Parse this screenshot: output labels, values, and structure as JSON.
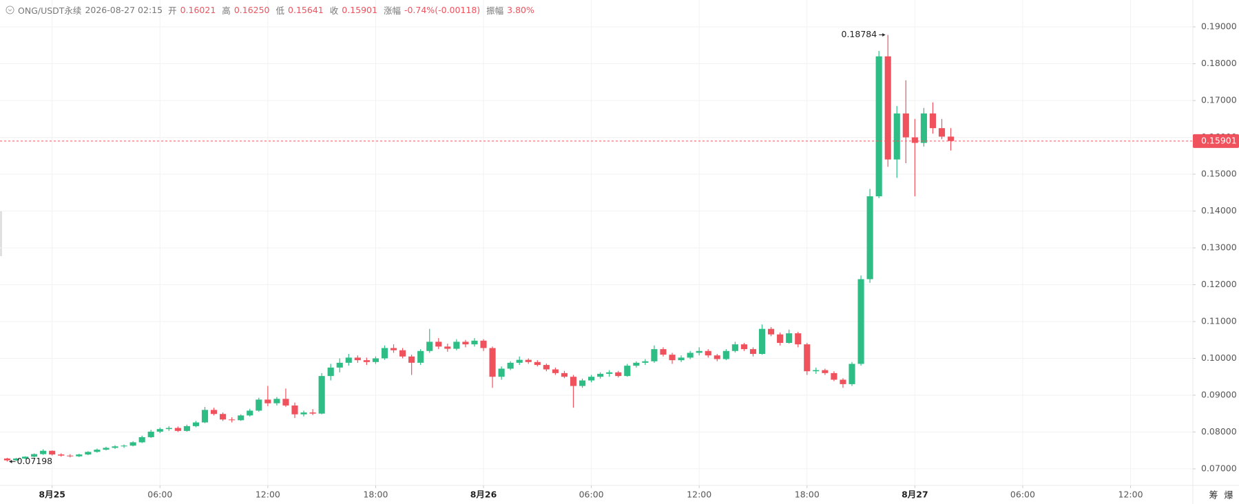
{
  "header": {
    "symbol": "ONG/USDT永续",
    "time": "2026-08-27 02:15",
    "fields": [
      {
        "label": "开",
        "value": "0.16021"
      },
      {
        "label": "高",
        "value": "0.16250"
      },
      {
        "label": "低",
        "value": "0.15641"
      },
      {
        "label": "收",
        "value": "0.15901"
      },
      {
        "label": "涨幅",
        "value": "-0.74%(-0.00118)"
      },
      {
        "label": "振幅",
        "value": "3.80%"
      }
    ]
  },
  "corner_labels": [
    "筹",
    "爆"
  ],
  "chart_data": {
    "type": "candlestick",
    "up_color": "#2ebd85",
    "down_color": "#f0525d",
    "grid": true,
    "xlim": [
      "2026-08-24 21:06",
      "2026-08-27 15:28"
    ],
    "ylim": [
      0.0655,
      0.1973
    ],
    "yticks": [
      {
        "value": 0.07,
        "label": "0.07000"
      },
      {
        "value": 0.08,
        "label": "0.08000"
      },
      {
        "value": 0.09,
        "label": "0.09000"
      },
      {
        "value": 0.1,
        "label": "0.10000"
      },
      {
        "value": 0.11,
        "label": "0.11000"
      },
      {
        "value": 0.12,
        "label": "0.12000"
      },
      {
        "value": 0.13,
        "label": "0.13000"
      },
      {
        "value": 0.14,
        "label": "0.14000"
      },
      {
        "value": 0.15,
        "label": "0.15000"
      },
      {
        "value": 0.16,
        "label": "0.16000"
      },
      {
        "value": 0.17,
        "label": "0.17000"
      },
      {
        "value": 0.18,
        "label": "0.18000"
      },
      {
        "value": 0.19,
        "label": "0.19000"
      }
    ],
    "xticks": [
      {
        "value": "2026-08-25 00:00",
        "label": "8月25"
      },
      {
        "value": "2026-08-25 06:00",
        "label": "06:00"
      },
      {
        "value": "2026-08-25 12:00",
        "label": "12:00"
      },
      {
        "value": "2026-08-25 18:00",
        "label": "18:00"
      },
      {
        "value": "2026-08-26 00:00",
        "label": "8月26"
      },
      {
        "value": "2026-08-26 06:00",
        "label": "06:00"
      },
      {
        "value": "2026-08-26 12:00",
        "label": "12:00"
      },
      {
        "value": "2026-08-26 18:00",
        "label": "18:00"
      },
      {
        "value": "2026-08-27 00:00",
        "label": "8月27"
      },
      {
        "value": "2026-08-27 06:00",
        "label": "06:00"
      },
      {
        "value": "2026-08-27 12:00",
        "label": "12:00"
      }
    ],
    "x": [
      "2026-08-24 21:30",
      "2026-08-24 22:00",
      "2026-08-24 22:30",
      "2026-08-24 23:00",
      "2026-08-24 23:30",
      "2026-08-25 00:00",
      "2026-08-25 00:30",
      "2026-08-25 01:00",
      "2026-08-25 01:30",
      "2026-08-25 02:00",
      "2026-08-25 02:30",
      "2026-08-25 03:00",
      "2026-08-25 03:30",
      "2026-08-25 04:00",
      "2026-08-25 04:30",
      "2026-08-25 05:00",
      "2026-08-25 05:30",
      "2026-08-25 06:00",
      "2026-08-25 06:30",
      "2026-08-25 07:00",
      "2026-08-25 07:30",
      "2026-08-25 08:00",
      "2026-08-25 08:30",
      "2026-08-25 09:00",
      "2026-08-25 09:30",
      "2026-08-25 10:00",
      "2026-08-25 10:30",
      "2026-08-25 11:00",
      "2026-08-25 11:30",
      "2026-08-25 12:00",
      "2026-08-25 12:30",
      "2026-08-25 13:00",
      "2026-08-25 13:30",
      "2026-08-25 14:00",
      "2026-08-25 14:30",
      "2026-08-25 15:00",
      "2026-08-25 15:30",
      "2026-08-25 16:00",
      "2026-08-25 16:30",
      "2026-08-25 17:00",
      "2026-08-25 17:30",
      "2026-08-25 18:00",
      "2026-08-25 18:30",
      "2026-08-25 19:00",
      "2026-08-25 19:30",
      "2026-08-25 20:00",
      "2026-08-25 20:30",
      "2026-08-25 21:00",
      "2026-08-25 21:30",
      "2026-08-25 22:00",
      "2026-08-25 22:30",
      "2026-08-25 23:00",
      "2026-08-25 23:30",
      "2026-08-26 00:00",
      "2026-08-26 00:30",
      "2026-08-26 01:00",
      "2026-08-26 01:30",
      "2026-08-26 02:00",
      "2026-08-26 02:30",
      "2026-08-26 03:00",
      "2026-08-26 03:30",
      "2026-08-26 04:00",
      "2026-08-26 04:30",
      "2026-08-26 05:00",
      "2026-08-26 05:30",
      "2026-08-26 06:00",
      "2026-08-26 06:30",
      "2026-08-26 07:00",
      "2026-08-26 07:30",
      "2026-08-26 08:00",
      "2026-08-26 08:30",
      "2026-08-26 09:00",
      "2026-08-26 09:30",
      "2026-08-26 10:00",
      "2026-08-26 10:30",
      "2026-08-26 11:00",
      "2026-08-26 11:30",
      "2026-08-26 12:00",
      "2026-08-26 12:30",
      "2026-08-26 13:00",
      "2026-08-26 13:30",
      "2026-08-26 14:00",
      "2026-08-26 14:30",
      "2026-08-26 15:00",
      "2026-08-26 15:30",
      "2026-08-26 16:00",
      "2026-08-26 16:30",
      "2026-08-26 17:00",
      "2026-08-26 17:30",
      "2026-08-26 18:00",
      "2026-08-26 18:30",
      "2026-08-26 19:00",
      "2026-08-26 19:30",
      "2026-08-26 20:00",
      "2026-08-26 20:30",
      "2026-08-26 21:00",
      "2026-08-26 21:30",
      "2026-08-26 22:00",
      "2026-08-26 22:30",
      "2026-08-26 23:00",
      "2026-08-26 23:30",
      "2026-08-27 00:00",
      "2026-08-27 00:30",
      "2026-08-27 01:00",
      "2026-08-27 01:30",
      "2026-08-27 02:00"
    ],
    "open": [
      0.0728,
      0.0723,
      0.0728,
      0.0733,
      0.074,
      0.0749,
      0.0739,
      0.0736,
      0.0734,
      0.0739,
      0.0746,
      0.0752,
      0.0757,
      0.0761,
      0.0763,
      0.0772,
      0.0786,
      0.0801,
      0.0808,
      0.0811,
      0.0803,
      0.0816,
      0.0826,
      0.086,
      0.0849,
      0.0834,
      0.0832,
      0.0845,
      0.0858,
      0.0888,
      0.0878,
      0.089,
      0.0872,
      0.0848,
      0.0853,
      0.085,
      0.0952,
      0.0975,
      0.0988,
      0.1002,
      0.0995,
      0.099,
      0.1,
      0.1028,
      0.1022,
      0.1005,
      0.0988,
      0.102,
      0.1045,
      0.1032,
      0.1026,
      0.1045,
      0.1038,
      0.1048,
      0.1028,
      0.095,
      0.0972,
      0.0988,
      0.0996,
      0.099,
      0.0982,
      0.097,
      0.096,
      0.095,
      0.0925,
      0.094,
      0.095,
      0.0958,
      0.0962,
      0.0952,
      0.098,
      0.0988,
      0.0992,
      0.1025,
      0.101,
      0.0995,
      0.1002,
      0.1015,
      0.102,
      0.1008,
      0.0998,
      0.102,
      0.1038,
      0.1025,
      0.1012,
      0.108,
      0.1065,
      0.1042,
      0.1068,
      0.1038,
      0.0965,
      0.0968,
      0.096,
      0.0942,
      0.093,
      0.0985,
      0.1215,
      0.144,
      0.182,
      0.154,
      0.1665,
      0.16,
      0.1585,
      0.1665,
      0.1625,
      0.16021
    ],
    "high": [
      0.073,
      0.073,
      0.0734,
      0.0742,
      0.0753,
      0.075,
      0.0742,
      0.074,
      0.0741,
      0.0748,
      0.0755,
      0.076,
      0.0764,
      0.0766,
      0.0775,
      0.079,
      0.0806,
      0.0812,
      0.0816,
      0.0815,
      0.082,
      0.083,
      0.0868,
      0.0866,
      0.0853,
      0.084,
      0.0848,
      0.0863,
      0.0893,
      0.0925,
      0.0895,
      0.0918,
      0.088,
      0.0858,
      0.0862,
      0.096,
      0.0985,
      0.1,
      0.1012,
      0.1008,
      0.1002,
      0.1005,
      0.1035,
      0.1038,
      0.1028,
      0.101,
      0.1025,
      0.108,
      0.1055,
      0.104,
      0.1052,
      0.105,
      0.1055,
      0.1052,
      0.1032,
      0.0978,
      0.0992,
      0.1005,
      0.1,
      0.0995,
      0.0986,
      0.0975,
      0.0966,
      0.0955,
      0.0945,
      0.0955,
      0.0962,
      0.0968,
      0.0966,
      0.0985,
      0.0992,
      0.0998,
      0.1035,
      0.103,
      0.1015,
      0.1008,
      0.102,
      0.103,
      0.1025,
      0.1012,
      0.1025,
      0.1045,
      0.1042,
      0.103,
      0.1092,
      0.1085,
      0.107,
      0.1078,
      0.1072,
      0.1042,
      0.0975,
      0.0972,
      0.0965,
      0.0946,
      0.099,
      0.1225,
      0.146,
      0.1835,
      0.18784,
      0.1685,
      0.1755,
      0.165,
      0.168,
      0.1695,
      0.165,
      0.1625
    ],
    "low": [
      0.07198,
      0.0721,
      0.0726,
      0.0731,
      0.0738,
      0.0736,
      0.0733,
      0.0731,
      0.0732,
      0.0737,
      0.0744,
      0.075,
      0.0754,
      0.0757,
      0.0761,
      0.077,
      0.0784,
      0.0797,
      0.0803,
      0.08,
      0.0801,
      0.0813,
      0.0824,
      0.0845,
      0.083,
      0.0826,
      0.083,
      0.0842,
      0.0855,
      0.087,
      0.0872,
      0.0868,
      0.0838,
      0.0842,
      0.0846,
      0.0848,
      0.094,
      0.0962,
      0.098,
      0.0988,
      0.0982,
      0.0985,
      0.0996,
      0.1015,
      0.1,
      0.0955,
      0.0982,
      0.1015,
      0.1025,
      0.1018,
      0.1022,
      0.103,
      0.1032,
      0.102,
      0.092,
      0.0942,
      0.0968,
      0.0982,
      0.0985,
      0.0978,
      0.0965,
      0.0955,
      0.0946,
      0.0866,
      0.092,
      0.0935,
      0.0945,
      0.095,
      0.0948,
      0.095,
      0.0975,
      0.0982,
      0.0988,
      0.1005,
      0.0985,
      0.099,
      0.0998,
      0.1008,
      0.1002,
      0.0992,
      0.0995,
      0.1016,
      0.102,
      0.1005,
      0.101,
      0.106,
      0.1035,
      0.104,
      0.103,
      0.0955,
      0.0958,
      0.0955,
      0.0938,
      0.092,
      0.0925,
      0.098,
      0.1205,
      0.1435,
      0.152,
      0.149,
      0.153,
      0.144,
      0.1575,
      0.161,
      0.1595,
      0.15641
    ],
    "close": [
      0.0723,
      0.0728,
      0.0733,
      0.074,
      0.0749,
      0.0739,
      0.0736,
      0.0734,
      0.0739,
      0.0746,
      0.0752,
      0.0757,
      0.0761,
      0.0763,
      0.0772,
      0.0786,
      0.0801,
      0.0808,
      0.0811,
      0.0803,
      0.0816,
      0.0826,
      0.086,
      0.0849,
      0.0834,
      0.0832,
      0.0845,
      0.0858,
      0.0888,
      0.0878,
      0.089,
      0.0872,
      0.0848,
      0.0853,
      0.085,
      0.0952,
      0.0975,
      0.0988,
      0.1002,
      0.0995,
      0.099,
      0.1,
      0.1028,
      0.1022,
      0.1005,
      0.0988,
      0.102,
      0.1045,
      0.1032,
      0.1026,
      0.1045,
      0.1038,
      0.1048,
      0.1028,
      0.095,
      0.0972,
      0.0988,
      0.0996,
      0.099,
      0.0982,
      0.097,
      0.096,
      0.095,
      0.0925,
      0.094,
      0.095,
      0.0958,
      0.0962,
      0.0952,
      0.098,
      0.0988,
      0.0992,
      0.1025,
      0.101,
      0.0995,
      0.1002,
      0.1015,
      0.102,
      0.1008,
      0.0998,
      0.102,
      0.1038,
      0.1025,
      0.1012,
      0.108,
      0.1065,
      0.1042,
      0.1068,
      0.1038,
      0.0965,
      0.0968,
      0.096,
      0.0942,
      0.093,
      0.0985,
      0.1215,
      0.144,
      0.182,
      0.154,
      0.1665,
      0.16,
      0.1585,
      0.1665,
      0.1625,
      0.1602,
      0.15901
    ]
  }
}
